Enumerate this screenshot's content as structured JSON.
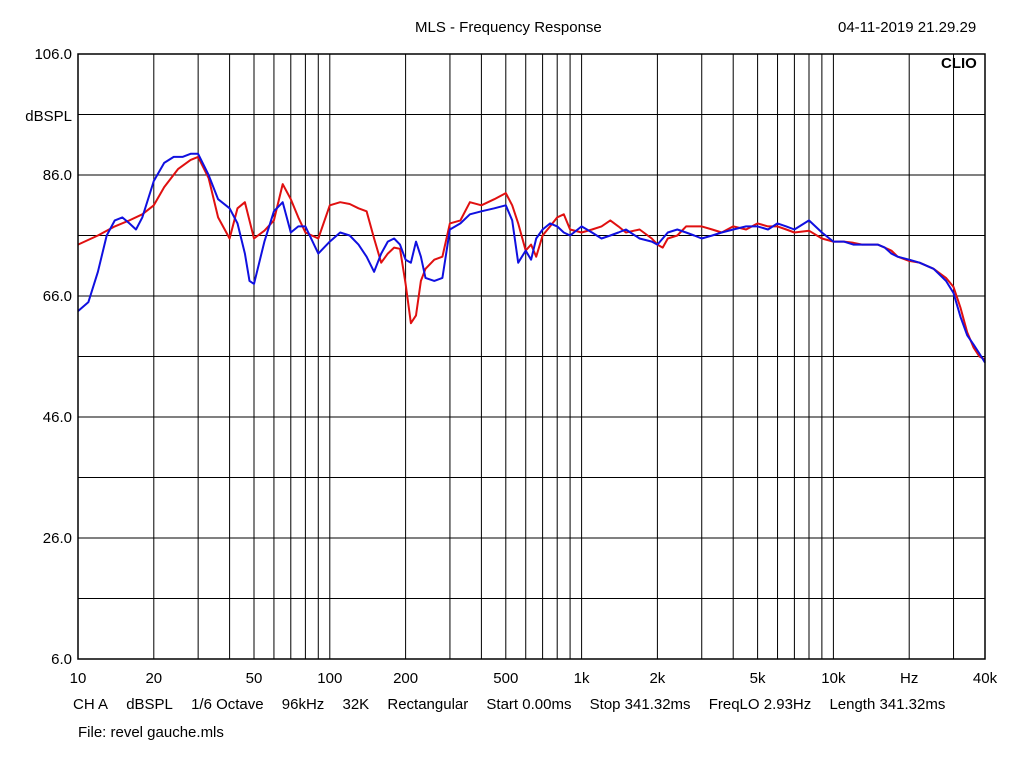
{
  "header": {
    "title": "MLS - Frequency Response",
    "timestamp": "04-11-2019 21.29.29"
  },
  "logo": "CLIO",
  "status": {
    "items": [
      "CH A",
      "dBSPL",
      "1/6 Octave",
      "96kHz",
      "32K",
      "Rectangular",
      "Start 0.00ms",
      "Stop 341.32ms",
      "FreqLO 2.93Hz",
      "Length 341.32ms"
    ],
    "file": "File: revel gauche.mls"
  },
  "colors": {
    "background": "#ffffff",
    "grid": "#000000",
    "red": "#e01010",
    "blue": "#1010e0"
  },
  "chart_data": {
    "type": "line",
    "title": "MLS - Frequency Response",
    "xlabel": "",
    "ylabel": "dBSPL",
    "x_scale": "log",
    "xlim": [
      10,
      40000
    ],
    "ylim": [
      6,
      106
    ],
    "grid": true,
    "x_ticks": [
      {
        "value": 10,
        "label": "10"
      },
      {
        "value": 20,
        "label": "20"
      },
      {
        "value": 50,
        "label": "50"
      },
      {
        "value": 100,
        "label": "100"
      },
      {
        "value": 200,
        "label": "200"
      },
      {
        "value": 500,
        "label": "500"
      },
      {
        "value": 1000,
        "label": "1k"
      },
      {
        "value": 2000,
        "label": "2k"
      },
      {
        "value": 5000,
        "label": "5k"
      },
      {
        "value": 10000,
        "label": "10k"
      },
      {
        "value": 20000,
        "label": "Hz"
      },
      {
        "value": 40000,
        "label": "40k"
      }
    ],
    "y_ticks": [
      {
        "value": 106,
        "label": "106.0"
      },
      {
        "value": 86,
        "label": "86.0"
      },
      {
        "value": 66,
        "label": "66.0"
      },
      {
        "value": 46,
        "label": "46.0"
      },
      {
        "value": 26,
        "label": "26.0"
      },
      {
        "value": 6,
        "label": "6.0"
      }
    ],
    "series": [
      {
        "color": "#e01010",
        "x": [
          10,
          12,
          14,
          16,
          18,
          20,
          22,
          25,
          28,
          30,
          33,
          36,
          40,
          43,
          46,
          50,
          55,
          60,
          65,
          70,
          75,
          80,
          90,
          100,
          110,
          120,
          130,
          140,
          150,
          160,
          170,
          180,
          190,
          200,
          210,
          220,
          230,
          240,
          260,
          280,
          300,
          330,
          360,
          400,
          450,
          500,
          530,
          560,
          600,
          630,
          660,
          700,
          750,
          800,
          850,
          900,
          1000,
          1100,
          1200,
          1300,
          1400,
          1500,
          1700,
          1900,
          2000,
          2100,
          2200,
          2400,
          2600,
          2800,
          3000,
          3300,
          3600,
          4000,
          4500,
          5000,
          5500,
          6000,
          6500,
          7000,
          8000,
          9000,
          10000,
          11000,
          12000,
          13000,
          14000,
          15000,
          16000,
          17000,
          18000,
          20000,
          22000,
          25000,
          28000,
          30000,
          32000,
          34000,
          36000,
          38000,
          40000
        ],
        "y": [
          74.5,
          76.0,
          77.5,
          78.5,
          79.5,
          81.0,
          84.0,
          87.0,
          88.5,
          89.0,
          85.5,
          79.0,
          75.5,
          80.5,
          81.5,
          75.5,
          76.8,
          78.5,
          84.5,
          82.0,
          79.0,
          76.5,
          75.5,
          81.0,
          81.5,
          81.2,
          80.5,
          80.0,
          75.5,
          71.5,
          73.0,
          74.0,
          73.8,
          68.0,
          61.5,
          62.8,
          68.5,
          70.5,
          72.0,
          72.5,
          78.0,
          78.5,
          81.5,
          81.0,
          82.0,
          83.0,
          81.0,
          78.0,
          73.5,
          74.5,
          72.5,
          76.0,
          77.5,
          79.0,
          79.5,
          77.0,
          76.5,
          77.0,
          77.5,
          78.5,
          77.5,
          76.5,
          77.0,
          75.5,
          74.5,
          74.0,
          75.5,
          76.0,
          77.5,
          77.5,
          77.5,
          77.0,
          76.5,
          77.5,
          77.0,
          78.0,
          77.5,
          77.5,
          77.0,
          76.5,
          76.8,
          75.5,
          75.0,
          75.0,
          74.8,
          74.5,
          74.5,
          74.5,
          74.0,
          73.5,
          72.5,
          71.8,
          71.5,
          70.5,
          69.0,
          67.5,
          64.0,
          60.0,
          57.5,
          56.0,
          55.5
        ]
      },
      {
        "color": "#1010e0",
        "x": [
          10,
          11,
          12,
          13,
          14,
          15,
          16,
          17,
          18,
          20,
          22,
          24,
          26,
          28,
          30,
          33,
          36,
          40,
          43,
          46,
          48,
          50,
          55,
          60,
          65,
          70,
          75,
          80,
          90,
          100,
          110,
          120,
          130,
          140,
          150,
          160,
          170,
          180,
          190,
          200,
          210,
          220,
          230,
          240,
          260,
          280,
          300,
          330,
          360,
          400,
          450,
          500,
          530,
          560,
          600,
          630,
          660,
          700,
          750,
          800,
          850,
          900,
          1000,
          1100,
          1200,
          1300,
          1400,
          1500,
          1700,
          1900,
          2000,
          2100,
          2200,
          2400,
          2600,
          2800,
          3000,
          3300,
          3600,
          4000,
          4500,
          5000,
          5500,
          6000,
          6500,
          7000,
          8000,
          9000,
          10000,
          11000,
          12000,
          13000,
          14000,
          15000,
          16000,
          17000,
          18000,
          20000,
          22000,
          25000,
          28000,
          30000,
          32000,
          34000,
          36000,
          38000,
          40000
        ],
        "y": [
          63.5,
          65.0,
          70.0,
          76.0,
          78.5,
          79.0,
          78.0,
          77.0,
          79.0,
          85.0,
          88.0,
          89.0,
          89.0,
          89.5,
          89.5,
          86.0,
          82.0,
          80.5,
          78.0,
          73.0,
          68.5,
          68.0,
          75.0,
          80.0,
          81.5,
          76.5,
          77.5,
          77.5,
          73.0,
          75.0,
          76.5,
          76.0,
          74.5,
          72.5,
          70.0,
          73.0,
          75.0,
          75.5,
          74.5,
          72.0,
          71.5,
          75.0,
          72.5,
          69.0,
          68.5,
          69.0,
          77.0,
          78.0,
          79.5,
          80.0,
          80.5,
          81.0,
          78.5,
          71.5,
          73.5,
          72.0,
          75.5,
          77.0,
          78.0,
          77.5,
          76.5,
          76.0,
          77.5,
          76.5,
          75.5,
          76.0,
          76.5,
          77.0,
          75.5,
          75.0,
          74.5,
          75.5,
          76.5,
          77.0,
          76.5,
          76.0,
          75.5,
          76.0,
          76.5,
          77.0,
          77.5,
          77.5,
          77.0,
          78.0,
          77.5,
          77.0,
          78.5,
          76.5,
          75.0,
          75.0,
          74.5,
          74.5,
          74.5,
          74.5,
          74.0,
          73.0,
          72.5,
          72.0,
          71.5,
          70.5,
          68.5,
          66.5,
          62.5,
          59.5,
          58.0,
          56.5,
          55.0
        ]
      }
    ]
  }
}
